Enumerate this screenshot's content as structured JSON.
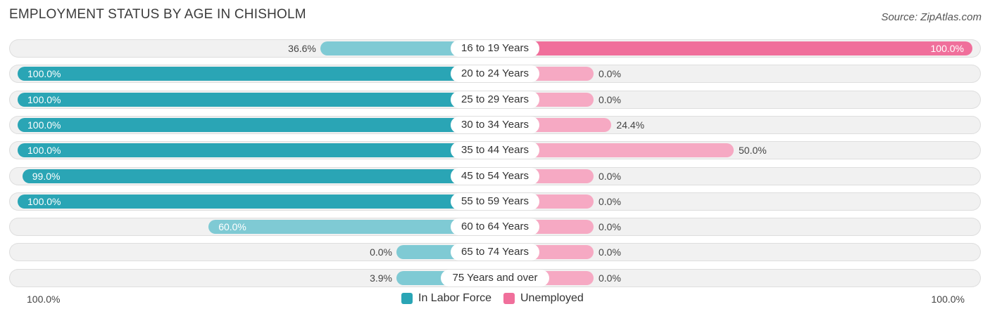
{
  "title": "EMPLOYMENT STATUS BY AGE IN CHISHOLM",
  "source": "Source: ZipAtlas.com",
  "colors": {
    "in_labor_force": "#2aa5b5",
    "in_labor_force_light": "#7fcad4",
    "unemployed": "#f06f9b",
    "unemployed_light": "#f6a9c3"
  },
  "chart_data": {
    "type": "bar",
    "orientation": "horizontal-diverging",
    "categories": [
      "16 to 19 Years",
      "20 to 24 Years",
      "25 to 29 Years",
      "30 to 34 Years",
      "35 to 44 Years",
      "45 to 54 Years",
      "55 to 59 Years",
      "60 to 64 Years",
      "65 to 74 Years",
      "75 Years and over"
    ],
    "series": [
      {
        "name": "In Labor Force",
        "values": [
          36.6,
          100.0,
          100.0,
          100.0,
          100.0,
          99.0,
          100.0,
          60.0,
          0.0,
          3.9
        ],
        "labels": [
          "36.6%",
          "100.0%",
          "100.0%",
          "100.0%",
          "100.0%",
          "99.0%",
          "100.0%",
          "60.0%",
          "0.0%",
          "3.9%"
        ]
      },
      {
        "name": "Unemployed",
        "values": [
          100.0,
          0.0,
          0.0,
          24.4,
          50.0,
          0.0,
          0.0,
          0.0,
          0.0,
          0.0
        ],
        "labels": [
          "100.0%",
          "0.0%",
          "0.0%",
          "24.4%",
          "50.0%",
          "0.0%",
          "0.0%",
          "0.0%",
          "0.0%",
          "0.0%"
        ]
      }
    ],
    "axis": {
      "left_label": "100.0%",
      "right_label": "100.0%",
      "range": [
        0,
        100
      ]
    },
    "legend": {
      "position": "bottom-center",
      "items": [
        "In Labor Force",
        "Unemployed"
      ]
    }
  }
}
